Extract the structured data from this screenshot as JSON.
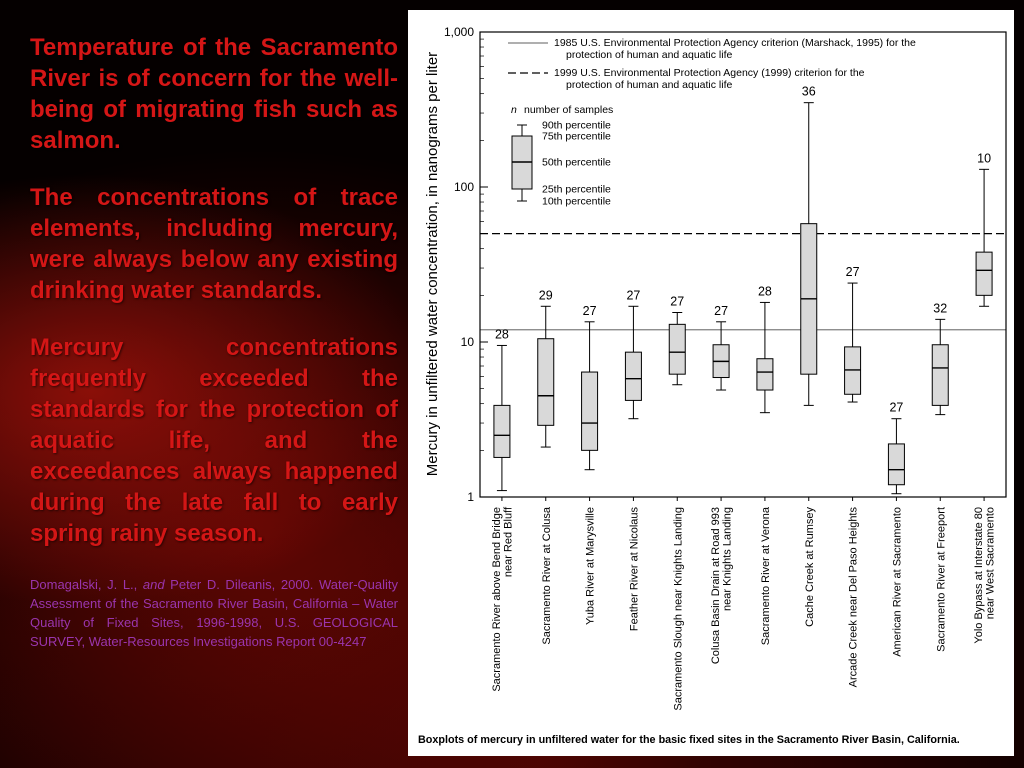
{
  "slide": {
    "paragraphs": [
      "Temperature of the Sacramento River is of concern for the well-being of migrating fish such as salmon.",
      "The concentrations of trace elements, including mercury, were always below any existing drinking water standards.",
      "Mercury concentrations frequently exceeded the standards for the protection of aquatic life, and the exceedances always happened during the late fall to early spring rainy season."
    ],
    "citation": {
      "pre": "Domagalski, J. L., ",
      "and_word": "and",
      "post": " Peter D. Dileanis, 2000. Water-Quality Assessment of the Sacramento River Basin, California – Water Quality of Fixed Sites, 1996-1998, U.S. GEOLOGICAL SURVEY, Water-Resources Investigations Report 00-4247"
    }
  },
  "chart_data": {
    "type": "boxplot",
    "title": "",
    "ylabel": "Mercury in unfiltered water concentration, in nanograms per liter",
    "yscale": "log",
    "ylim": [
      1,
      1000
    ],
    "yticks": [
      1,
      10,
      100,
      1000
    ],
    "ytick_labels": [
      "1",
      "10",
      "100",
      "1,000"
    ],
    "reference_lines": [
      {
        "value": 12,
        "style": "solid",
        "label": [
          "1985 U.S. Environmental Protection Agency criterion (Marshack, 1995) for the",
          "protection of human and aquatic life"
        ]
      },
      {
        "value": 50,
        "style": "dashed",
        "label": [
          "1999 U.S. Environmental Protection Agency (1999) criterion for the",
          "protection of human and aquatic life"
        ]
      }
    ],
    "legend": {
      "n_symbol": "n",
      "n_text": "number of samples",
      "percentile_labels": [
        "90th percentile",
        "75th percentile",
        "50th percentile",
        "25th percentile",
        "10th percentile"
      ]
    },
    "sites": [
      {
        "label_lines": [
          "Sacramento River above Bend Bridge",
          "near Red Bluff"
        ],
        "n": 28,
        "p10": 1.1,
        "p25": 1.8,
        "p50": 2.5,
        "p75": 3.9,
        "p90": 9.5
      },
      {
        "label_lines": [
          "Sacramento River at Colusa"
        ],
        "n": 29,
        "p10": 2.1,
        "p25": 2.9,
        "p50": 4.5,
        "p75": 10.5,
        "p90": 17
      },
      {
        "label_lines": [
          "Yuba River at Marysville"
        ],
        "n": 27,
        "p10": 1.5,
        "p25": 2.0,
        "p50": 3.0,
        "p75": 6.4,
        "p90": 13.5
      },
      {
        "label_lines": [
          "Feather River at Nicolaus"
        ],
        "n": 27,
        "p10": 3.2,
        "p25": 4.2,
        "p50": 5.8,
        "p75": 8.6,
        "p90": 17
      },
      {
        "label_lines": [
          "Sacramento Slough near Knights Landing"
        ],
        "n": 27,
        "p10": 5.3,
        "p25": 6.2,
        "p50": 8.6,
        "p75": 13,
        "p90": 15.5
      },
      {
        "label_lines": [
          "Colusa Basin Drain at Road 993",
          "near Knights Landing"
        ],
        "n": 27,
        "p10": 4.9,
        "p25": 5.9,
        "p50": 7.5,
        "p75": 9.6,
        "p90": 13.5
      },
      {
        "label_lines": [
          "Sacramento River at Verona"
        ],
        "n": 28,
        "p10": 3.5,
        "p25": 4.9,
        "p50": 6.4,
        "p75": 7.8,
        "p90": 18
      },
      {
        "label_lines": [
          "Cache Creek at Rumsey"
        ],
        "n": 36,
        "p10": 3.9,
        "p25": 6.2,
        "p50": 19,
        "p75": 58,
        "p90": 350
      },
      {
        "label_lines": [
          "Arcade Creek near Del Paso Heights"
        ],
        "n": 27,
        "p10": 4.1,
        "p25": 4.6,
        "p50": 6.6,
        "p75": 9.3,
        "p90": 24
      },
      {
        "label_lines": [
          "American River at Sacramento"
        ],
        "n": 27,
        "p10": 1.05,
        "p25": 1.2,
        "p50": 1.5,
        "p75": 2.2,
        "p90": 3.2
      },
      {
        "label_lines": [
          "Sacramento River at Freeport"
        ],
        "n": 32,
        "p10": 3.4,
        "p25": 3.9,
        "p50": 6.8,
        "p75": 9.6,
        "p90": 14
      },
      {
        "label_lines": [
          "Yolo Bypass at Interstate 80",
          "near West Sacramento"
        ],
        "n": 10,
        "p10": 17,
        "p25": 20,
        "p50": 29,
        "p75": 38,
        "p90": 130
      }
    ],
    "caption": "Boxplots of mercury in unfiltered water for the basic fixed sites in the Sacramento River Basin, California.",
    "colors": {
      "box_fill": "#d9d9d9",
      "criterion_1985": "#7f7f7f",
      "criterion_1999": "#000000"
    }
  }
}
